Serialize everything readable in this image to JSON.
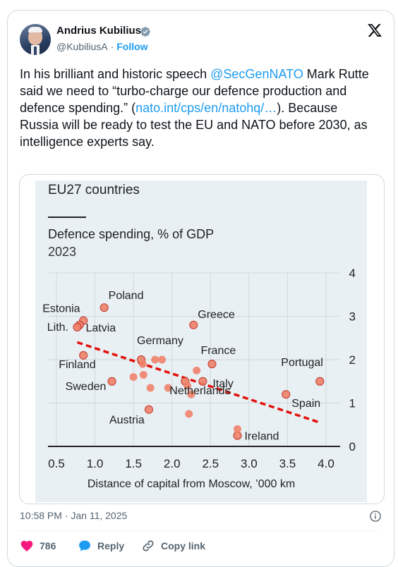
{
  "author": {
    "name": "Andrius Kubilius",
    "handle": "@KubiliusA",
    "follow_label": "Follow"
  },
  "tweet": {
    "p1": "In his brilliant and historic speech ",
    "mention": "@SecGenNATO",
    "p2": " Mark Rutte said we need to “turbo-charge our defence production and defence spending.” (",
    "link": "nato.int/cps/en/natohq/…",
    "p3": "). Because Russia will be ready to test the EU and NATO before 2030, as intelligence experts say."
  },
  "timestamp": "10:58 PM · Jan 11, 2025",
  "actions": {
    "likes": "786",
    "reply": "Reply",
    "copy_link": "Copy link"
  },
  "icons": [
    "verified-badge-icon",
    "x-logo-icon",
    "info-icon",
    "heart-icon",
    "reply-icon",
    "link-icon"
  ],
  "colors": {
    "accent": "#1d9bf0",
    "like": "#f91880",
    "point": "#f0826a",
    "trend": "#e3120b",
    "chart_bg": "#e9f0f4"
  },
  "chart_data": {
    "type": "scatter",
    "title": "EU27 countries",
    "subtitle": "Defence spending, % of GDP",
    "year": "2023",
    "xlabel": "Distance of capital from Moscow, ’000 km",
    "xlim": [
      0.5,
      4.0
    ],
    "ylim": [
      0,
      4
    ],
    "xticks": [
      "0.5",
      "1.0",
      "1.5",
      "2.0",
      "2.5",
      "3.0",
      "3.5",
      "4.0"
    ],
    "yticks": [
      "0",
      "1",
      "2",
      "3",
      "4"
    ],
    "y_axis_side": "right",
    "grid": true,
    "points": [
      {
        "x": 0.85,
        "y": 2.9,
        "label": "Estonia"
      },
      {
        "x": 1.12,
        "y": 3.2,
        "label": "Poland"
      },
      {
        "x": 0.8,
        "y": 2.8,
        "label": "Lith."
      },
      {
        "x": 0.77,
        "y": 2.75,
        "label": "Latvia"
      },
      {
        "x": 0.85,
        "y": 2.1,
        "label": "Finland"
      },
      {
        "x": 1.22,
        "y": 1.5,
        "label": "Sweden"
      },
      {
        "x": 2.28,
        "y": 2.8,
        "label": "Greece"
      },
      {
        "x": 1.6,
        "y": 2.0,
        "label": "Germany"
      },
      {
        "x": 2.52,
        "y": 1.9,
        "label": "France"
      },
      {
        "x": 2.4,
        "y": 1.5,
        "label": "Italy"
      },
      {
        "x": 2.17,
        "y": 1.5,
        "label": "Netherlands"
      },
      {
        "x": 1.7,
        "y": 0.85,
        "label": "Austria"
      },
      {
        "x": 3.48,
        "y": 1.2,
        "label": "Spain"
      },
      {
        "x": 3.92,
        "y": 1.5,
        "label": "Portugal"
      },
      {
        "x": 2.85,
        "y": 0.25,
        "label": "Ireland"
      },
      {
        "x": 1.5,
        "y": 1.6,
        "label": ""
      },
      {
        "x": 1.63,
        "y": 1.65,
        "label": ""
      },
      {
        "x": 1.62,
        "y": 1.9,
        "label": ""
      },
      {
        "x": 1.72,
        "y": 1.35,
        "label": ""
      },
      {
        "x": 1.78,
        "y": 2.0,
        "label": ""
      },
      {
        "x": 1.87,
        "y": 2.0,
        "label": ""
      },
      {
        "x": 1.95,
        "y": 1.35,
        "label": ""
      },
      {
        "x": 2.2,
        "y": 1.4,
        "label": ""
      },
      {
        "x": 2.25,
        "y": 1.2,
        "label": ""
      },
      {
        "x": 2.32,
        "y": 1.75,
        "label": ""
      },
      {
        "x": 2.22,
        "y": 0.75,
        "label": ""
      },
      {
        "x": 2.85,
        "y": 0.4,
        "label": ""
      }
    ],
    "trendline": {
      "style": "dashed",
      "x": [
        0.77,
        3.92
      ],
      "y": [
        2.4,
        0.55
      ]
    }
  }
}
